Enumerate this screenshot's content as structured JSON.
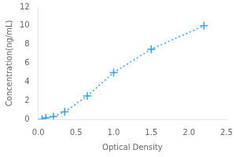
{
  "chart_data": {
    "type": "line",
    "xlabel": "Optical Density",
    "ylabel": "Concentration(ng/mL)",
    "x": [
      0.05,
      0.1,
      0.2,
      0.35,
      0.65,
      1.0,
      1.5,
      2.2
    ],
    "values": [
      0.0,
      0.15,
      0.3,
      0.8,
      2.5,
      5.0,
      7.5,
      10.0
    ],
    "xlim": [
      0,
      2.5
    ],
    "ylim": [
      0,
      12
    ],
    "xticks": [
      {
        "value": 0,
        "label": "0.0"
      },
      {
        "value": 0.5,
        "label": "0.5"
      },
      {
        "value": 1.0,
        "label": "1.0"
      },
      {
        "value": 1.5,
        "label": "1.5"
      },
      {
        "value": 2.0,
        "label": "2.0"
      },
      {
        "value": 2.5,
        "label": "2.5"
      }
    ],
    "yticks": [
      0,
      2,
      4,
      6,
      8,
      10,
      12
    ],
    "grid": false,
    "marker": "plus",
    "line_style": "dotted"
  }
}
